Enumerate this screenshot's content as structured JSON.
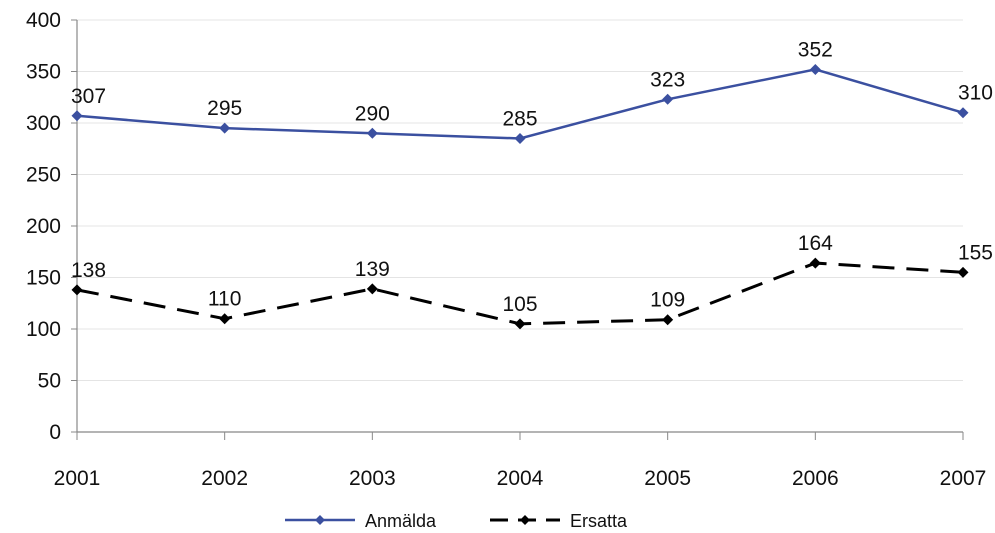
{
  "chart_data": {
    "type": "line",
    "title": "",
    "xlabel": "",
    "ylabel": "",
    "x": [
      "2001",
      "2002",
      "2003",
      "2004",
      "2005",
      "2006",
      "2007"
    ],
    "ylim": [
      0,
      400
    ],
    "yticks": [
      0,
      50,
      100,
      150,
      200,
      250,
      300,
      350,
      400
    ],
    "grid": true,
    "legend_position": "bottom",
    "series": [
      {
        "name": "Anmälda",
        "values": [
          307,
          295,
          290,
          285,
          323,
          352,
          310
        ],
        "color": "#3b50a0",
        "style": "solid",
        "marker": "diamond"
      },
      {
        "name": "Ersatta",
        "values": [
          138,
          110,
          139,
          105,
          109,
          164,
          155
        ],
        "color": "#000000",
        "style": "dashed",
        "marker": "diamond"
      }
    ]
  }
}
